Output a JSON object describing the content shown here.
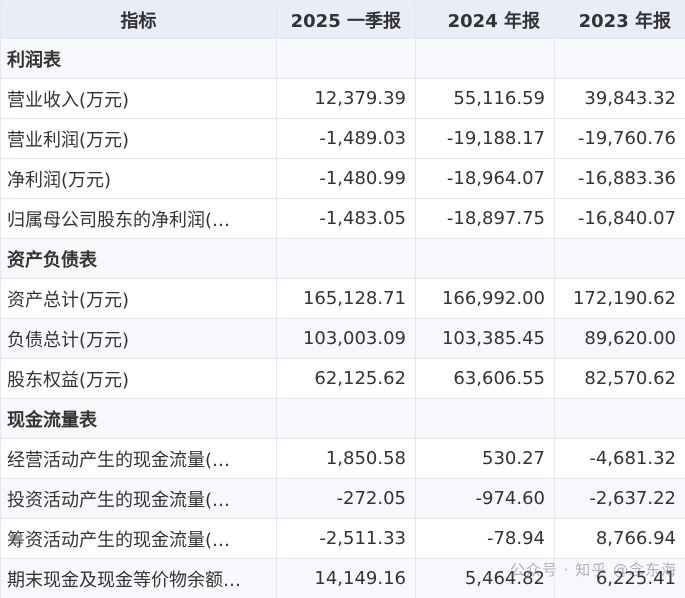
{
  "header": [
    "指标",
    "2025 一季报",
    "2024 年报",
    "2023 年报"
  ],
  "sections": [
    {
      "title": "利润表",
      "rows": [
        {
          "label": "营业收入(万元)",
          "values": [
            "12,379.39",
            "55,116.59",
            "39,843.32"
          ]
        },
        {
          "label": "营业利润(万元)",
          "values": [
            "-1,489.03",
            "-19,188.17",
            "-19,760.76"
          ]
        },
        {
          "label": "净利润(万元)",
          "values": [
            "-1,480.99",
            "-18,964.07",
            "-16,883.36"
          ]
        },
        {
          "label": "归属母公司股东的净利润(…",
          "values": [
            "-1,483.05",
            "-18,897.75",
            "-16,840.07"
          ]
        }
      ]
    },
    {
      "title": "资产负债表",
      "rows": [
        {
          "label": "资产总计(万元)",
          "values": [
            "165,128.71",
            "166,992.00",
            "172,190.62"
          ]
        },
        {
          "label": "负债总计(万元)",
          "values": [
            "103,003.09",
            "103,385.45",
            "89,620.00"
          ]
        },
        {
          "label": "股东权益(万元)",
          "values": [
            "62,125.62",
            "63,606.55",
            "82,570.62"
          ]
        }
      ]
    },
    {
      "title": "现金流量表",
      "rows": [
        {
          "label": "经营活动产生的现金流量(…",
          "values": [
            "1,850.58",
            "530.27",
            "-4,681.32"
          ]
        },
        {
          "label": "投资活动产生的现金流量(…",
          "values": [
            "-272.05",
            "-974.60",
            "-2,637.22"
          ]
        },
        {
          "label": "筹资活动产生的现金流量(…",
          "values": [
            "-2,511.33",
            "-78.94",
            "8,766.94"
          ]
        },
        {
          "label": "期末现金及现金等价物余额…",
          "values": [
            "14,149.16",
            "5,464.82",
            "6,225.41"
          ]
        }
      ]
    }
  ],
  "watermark": "公众号 · 知乎 @念东海"
}
